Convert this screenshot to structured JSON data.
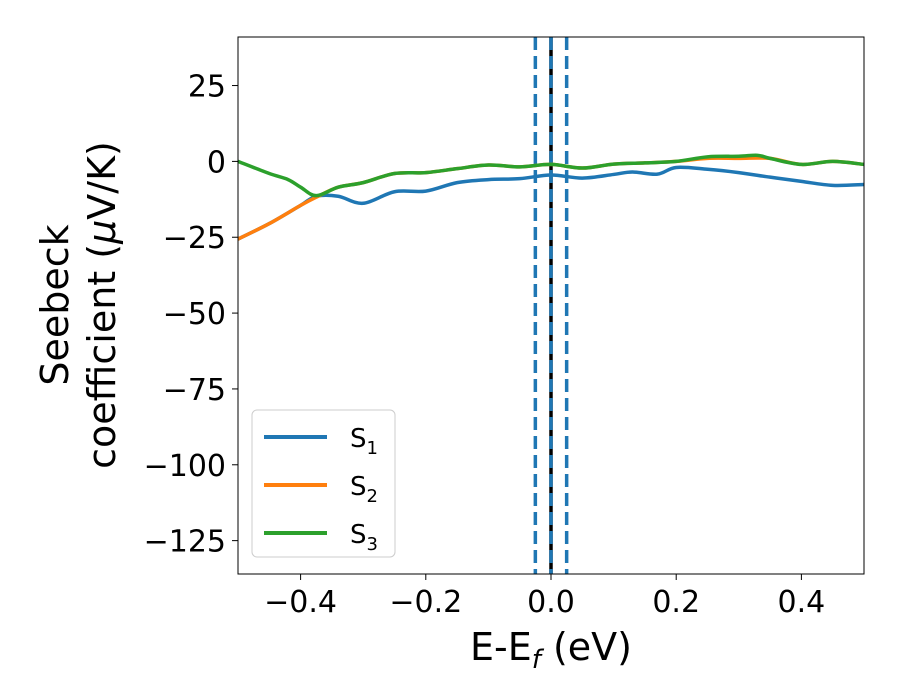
{
  "chart_data": {
    "type": "line",
    "xlabel": "E-E",
    "xlabel_sub": "f",
    "xlabel_unit": " (eV)",
    "ylabel_line1": "Seebeck",
    "ylabel_line2": "coefficient  (",
    "ylabel_mu": "μ",
    "ylabel_unit_end": "V/K)",
    "xlim": [
      -0.5,
      0.5
    ],
    "ylim": [
      -136,
      41
    ],
    "xticks": [
      -0.4,
      -0.2,
      0.0,
      0.2,
      0.4
    ],
    "xtick_labels": [
      "−0.4",
      "−0.2",
      "0.0",
      "0.2",
      "0.4"
    ],
    "yticks": [
      25,
      0,
      -25,
      -50,
      -75,
      -100,
      -125
    ],
    "ytick_labels": [
      "25",
      "0",
      "−25",
      "−50",
      "−75",
      "−100",
      "−125"
    ],
    "vlines": [
      {
        "x": 0.0,
        "color": "#000000",
        "style": "solid"
      },
      {
        "x": -0.025,
        "color": "#1f77b4",
        "style": "dashed"
      },
      {
        "x": 0.0,
        "color": "#1f77b4",
        "style": "dashed"
      },
      {
        "x": 0.025,
        "color": "#1f77b4",
        "style": "dashed"
      }
    ],
    "legend_position": "lower-left",
    "series": [
      {
        "name": "S",
        "sub": "1",
        "color": "#1f77b4",
        "x": [
          -0.5,
          -0.45,
          -0.4,
          -0.375,
          -0.34,
          -0.3,
          -0.25,
          -0.2,
          -0.15,
          -0.1,
          -0.05,
          0.0,
          0.05,
          0.1,
          0.13,
          0.17,
          0.2,
          0.25,
          0.3,
          0.35,
          0.4,
          0.45,
          0.5
        ],
        "y": [
          -25.6,
          -20.5,
          -14.5,
          -11.5,
          -11.5,
          -13.8,
          -10.0,
          -9.8,
          -7.0,
          -6.0,
          -5.7,
          -4.5,
          -5.5,
          -4.3,
          -3.5,
          -4.2,
          -2.0,
          -2.6,
          -3.7,
          -5.2,
          -6.6,
          -7.9,
          -7.6
        ]
      },
      {
        "name": "S",
        "sub": "2",
        "color": "#ff7f0e",
        "x": [
          -0.5,
          -0.45,
          -0.4,
          -0.375,
          -0.34,
          -0.3,
          -0.25,
          -0.2,
          -0.15,
          -0.1,
          -0.05,
          0.0,
          0.05,
          0.1,
          0.15,
          0.2,
          0.25,
          0.3,
          0.35,
          0.4,
          0.45,
          0.5
        ],
        "y": [
          -25.6,
          -20.5,
          -14.5,
          -11.8,
          -8.5,
          -7.0,
          -4.0,
          -3.7,
          -2.4,
          -1.2,
          -1.8,
          -1.0,
          -2.2,
          -0.9,
          -0.5,
          0.0,
          1.0,
          1.0,
          1.0,
          -1.0,
          0.0,
          -1.0
        ]
      },
      {
        "name": "S",
        "sub": "3",
        "color": "#2ca02c",
        "x": [
          -0.5,
          -0.45,
          -0.42,
          -0.4,
          -0.375,
          -0.34,
          -0.3,
          -0.25,
          -0.2,
          -0.15,
          -0.1,
          -0.05,
          0.0,
          0.05,
          0.1,
          0.15,
          0.2,
          0.25,
          0.3,
          0.33,
          0.35,
          0.4,
          0.45,
          0.5
        ],
        "y": [
          0.0,
          -4.0,
          -6.0,
          -8.5,
          -11.3,
          -8.5,
          -7.0,
          -4.0,
          -3.7,
          -2.4,
          -1.2,
          -1.8,
          -1.0,
          -2.2,
          -0.9,
          -0.5,
          0.0,
          1.5,
          1.7,
          2.0,
          1.0,
          -1.0,
          0.0,
          -1.0
        ]
      }
    ]
  }
}
